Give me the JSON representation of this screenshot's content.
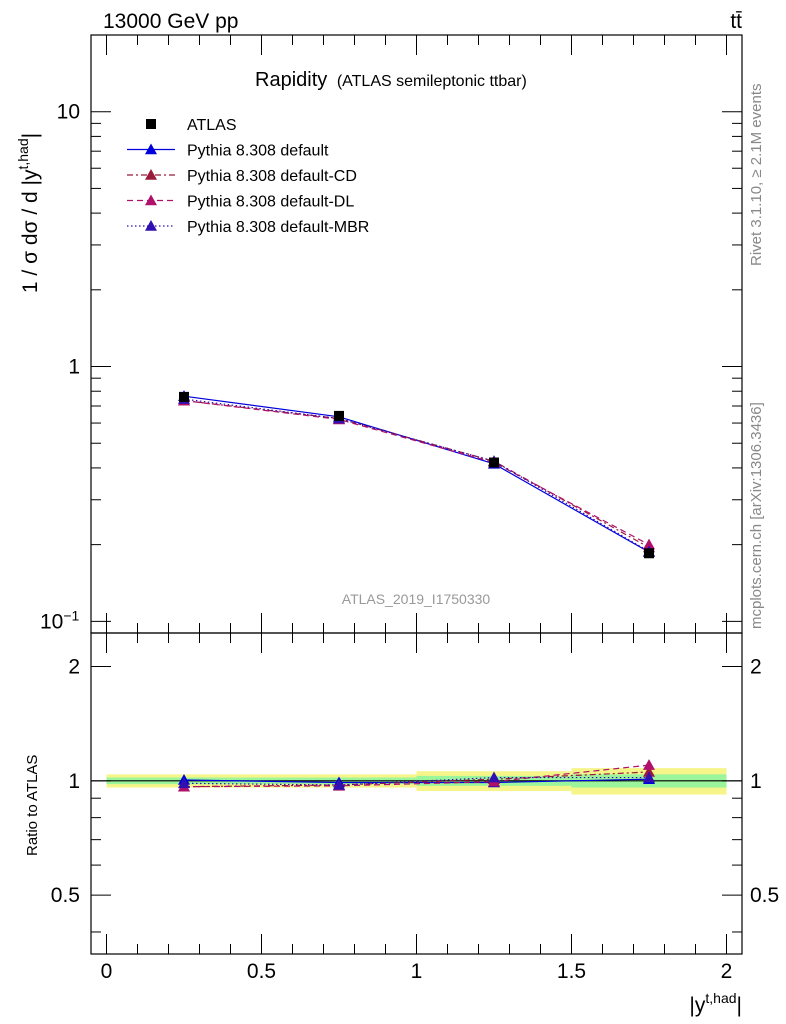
{
  "header": {
    "left": "13000 GeV pp",
    "right": "tt̄"
  },
  "side_labels": {
    "top": "Rivet 3.1.10, ≥ 2.1M events",
    "bottom": "mcplots.cern.ch [arXiv:1306.3436]"
  },
  "chart_data": {
    "type": "line",
    "title": "Rapidity",
    "subtitle": "(ATLAS semileptonic ttbar)",
    "watermark": "ATLAS_2019_I1750330",
    "ylabel_main": "1 / σ dσ / d |y",
    "ylabel_main_sup": "t,had",
    "ylabel_main_suffix": "|",
    "ylabel_ratio": "Ratio to ATLAS",
    "xlabel": "|y",
    "xlabel_sup": "t,had",
    "xlabel_suffix": "|",
    "x_bins": [
      [
        0,
        0.5
      ],
      [
        0.5,
        1
      ],
      [
        1,
        1.5
      ],
      [
        1.5,
        2
      ]
    ],
    "x": [
      0.25,
      0.75,
      1.25,
      1.75
    ],
    "xlim": [
      -0.05,
      2.05
    ],
    "ylim_main": [
      0.09,
      20
    ],
    "y_scale_main": "log",
    "ylim_ratio": [
      0.35,
      2.45
    ],
    "y_scale_ratio": "log",
    "x_ticks": [
      "0",
      "0.5",
      "1",
      "1.5",
      "2"
    ],
    "y_ticks_main": [
      {
        "label": "10",
        "sup": ""
      },
      {
        "label": "1",
        "sup": ""
      },
      {
        "label": "10",
        "sup": "−1"
      }
    ],
    "y_ticks_ratio": [
      "2",
      "1",
      "0.5"
    ],
    "legend_position": "top-left",
    "data": {
      "name": "ATLAS",
      "values": [
        0.76,
        0.64,
        0.42,
        0.185
      ],
      "band_inner": [
        0.02,
        0.02,
        0.03,
        0.04
      ],
      "band_outer": [
        0.04,
        0.04,
        0.06,
        0.08
      ]
    },
    "series": [
      {
        "name": "Pythia 8.308 default",
        "values": [
          0.765,
          0.635,
          0.415,
          0.187
        ],
        "ratio": [
          1.005,
          0.99,
          0.99,
          1.01
        ],
        "err": [
          0,
          0,
          0,
          0.03
        ],
        "color": "#0000dd",
        "dash": ""
      },
      {
        "name": "Pythia 8.308 default-CD",
        "values": [
          0.735,
          0.625,
          0.425,
          0.195
        ],
        "ratio": [
          0.965,
          0.975,
          1.01,
          1.055
        ],
        "err": [
          0,
          0,
          0,
          0.03
        ],
        "color": "#9a1a3a",
        "dash": "6,3,2,3"
      },
      {
        "name": "Pythia 8.308 default-DL",
        "values": [
          0.735,
          0.62,
          0.42,
          0.2
        ],
        "ratio": [
          0.965,
          0.97,
          0.995,
          1.1
        ],
        "err": [
          0,
          0,
          0,
          0.03
        ],
        "color": "#b0106a",
        "dash": "6,4"
      },
      {
        "name": "Pythia 8.308 default-MBR",
        "values": [
          0.745,
          0.625,
          0.425,
          0.188
        ],
        "ratio": [
          0.985,
          0.975,
          1.02,
          1.02
        ],
        "err": [
          0,
          0,
          0,
          0.03
        ],
        "color": "#3010b0",
        "dash": "1.5,2.5"
      }
    ],
    "colors": {
      "band_inner": "#9bf59b",
      "band_outer": "#f5f58a",
      "data_marker": "#000000"
    }
  }
}
